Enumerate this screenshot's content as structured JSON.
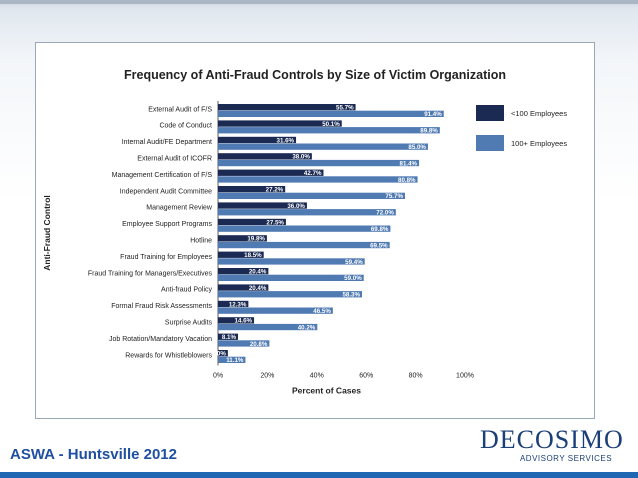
{
  "footer": {
    "title": "ASWA - Huntsville 2012"
  },
  "logo": {
    "name": "DECOSIMO",
    "tagline": "ADVISORY SERVICES"
  },
  "colors": {
    "series_small": "#1a2a52",
    "series_large": "#4f7ab2"
  },
  "chart_data": {
    "type": "bar",
    "orientation": "horizontal",
    "title": "Frequency of Anti-Fraud Controls by Size of Victim Organization",
    "xlabel": "Percent of Cases",
    "ylabel": "Anti-Fraud Control",
    "xlim": [
      0,
      100
    ],
    "xticks": [
      "0%",
      "20%",
      "40%",
      "60%",
      "80%",
      "100%"
    ],
    "legend_position": "right",
    "grid": false,
    "categories": [
      "External Audit of F/S",
      "Code of Conduct",
      "Internal Audit/FE Department",
      "External Audit of ICOFR",
      "Management Certification of F/S",
      "Independent Audit Committee",
      "Management Review",
      "Employee Support Programs",
      "Hotline",
      "Fraud Training for Employees",
      "Fraud Training for Managers/Executives",
      "Anti-fraud Policy",
      "Formal Fraud Risk Assessments",
      "Surprise Audits",
      "Job Rotation/Mandatory Vacation",
      "Rewards for Whistleblowers"
    ],
    "series": [
      {
        "name": "<100 Employees",
        "values": [
          55.7,
          50.1,
          31.6,
          38.0,
          42.7,
          27.2,
          36.0,
          27.5,
          19.8,
          18.5,
          20.4,
          20.4,
          12.3,
          14.6,
          8.1,
          4.0
        ],
        "labels": [
          "55.7%",
          "50.1%",
          "31.6%",
          "38.0%",
          "42.7%",
          "27.2%",
          "36.0%",
          "27.5%",
          "19.8%",
          "18.5%",
          "20.4%",
          "20.4%",
          "12.3%",
          "14.6%",
          "8.1%",
          "4.0%"
        ]
      },
      {
        "name": "100+ Employees",
        "values": [
          91.4,
          89.8,
          85.0,
          81.4,
          80.8,
          75.7,
          72.0,
          69.8,
          69.5,
          59.4,
          59.0,
          58.3,
          46.5,
          40.2,
          20.8,
          11.1
        ],
        "labels": [
          "91.4%",
          "89.8%",
          "85.0%",
          "81.4%",
          "80.8%",
          "75.7%",
          "72.0%",
          "69.8%",
          "69.5%",
          "59.4%",
          "59.0%",
          "58.3%",
          "46.5%",
          "40.2%",
          "20.8%",
          "11.1%"
        ]
      }
    ]
  }
}
